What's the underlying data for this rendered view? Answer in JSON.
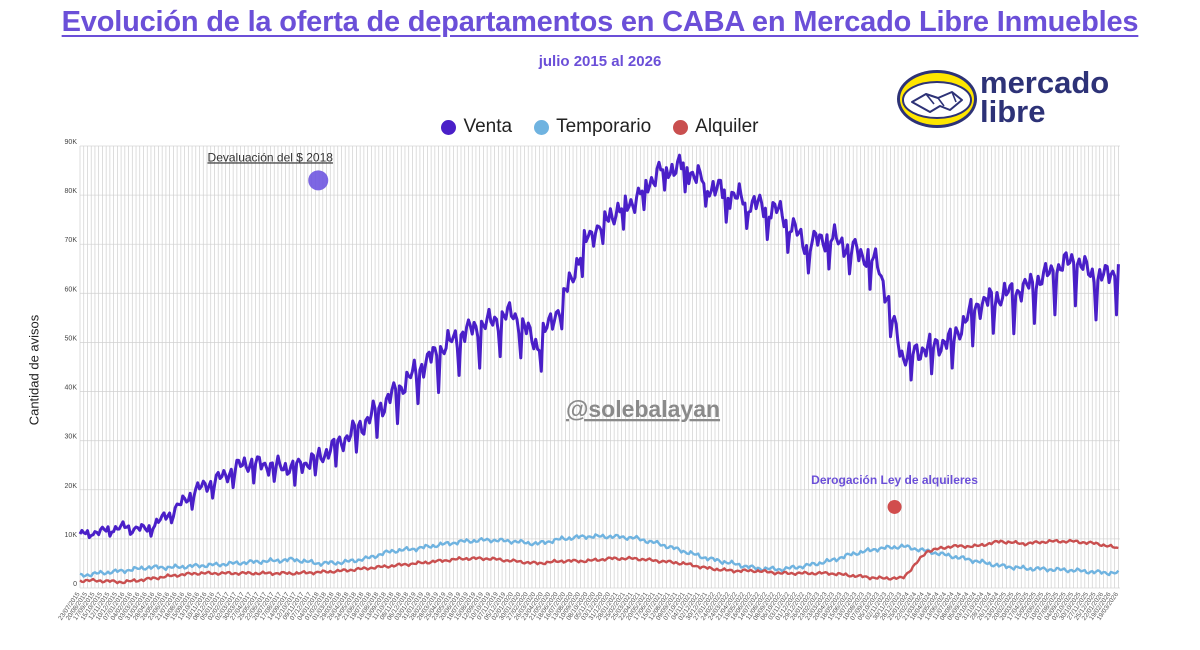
{
  "chart_data": {
    "type": "line",
    "title": "Evolución de la oferta de departamentos en CABA en Mercado Libre Inmuebles",
    "subtitle": "julio 2015 al 2026",
    "ylabel": "Cantidad de avisos",
    "xlabel": "",
    "ylim": [
      0,
      90000
    ],
    "yticks": [
      0,
      10000,
      20000,
      30000,
      40000,
      50000,
      60000,
      70000,
      80000,
      90000
    ],
    "ytick_labels": [
      "0",
      "10K",
      "20K",
      "30K",
      "40K",
      "50K",
      "60K",
      "70K",
      "80K",
      "90K"
    ],
    "grid": true,
    "legend_position": "top-center",
    "x": [
      "2015-07-23",
      "2015-10-01",
      "2016-01-01",
      "2016-04-01",
      "2016-07-01",
      "2016-10-01",
      "2017-01-01",
      "2017-04-01",
      "2017-07-01",
      "2017-10-01",
      "2018-01-01",
      "2018-04-01",
      "2018-07-01",
      "2018-10-01",
      "2019-01-01",
      "2019-04-01",
      "2019-07-01",
      "2019-10-01",
      "2020-01-01",
      "2020-04-01",
      "2020-07-01",
      "2020-10-01",
      "2021-01-01",
      "2021-04-01",
      "2021-07-01",
      "2021-10-01",
      "2022-01-01",
      "2022-04-01",
      "2022-07-01",
      "2022-10-01",
      "2023-01-01",
      "2023-04-01",
      "2023-07-01",
      "2023-10-01",
      "2024-01-01",
      "2024-04-01",
      "2024-07-01",
      "2024-10-01",
      "2025-01-01",
      "2025-04-01",
      "2025-07-01",
      "2025-10-01",
      "2026-01-01",
      "2026-03-25"
    ],
    "series": [
      {
        "name": "Venta",
        "color": "#4a1fc8",
        "values": [
          11000,
          11500,
          12500,
          12000,
          15500,
          20000,
          22500,
          25500,
          25000,
          24500,
          26500,
          30000,
          34000,
          39000,
          44000,
          48500,
          52000,
          54000,
          56000,
          49500,
          58000,
          71000,
          76000,
          79000,
          85000,
          86000,
          82000,
          80000,
          78000,
          76500,
          70000,
          71500,
          69000,
          66000,
          47000,
          49000,
          50500,
          57500,
          59500,
          61000,
          64000,
          67000,
          63000,
          65000
        ]
      },
      {
        "name": "Temporario",
        "color": "#6fb3e0",
        "values": [
          2500,
          3000,
          3500,
          4200,
          4200,
          4500,
          4800,
          5200,
          5500,
          5800,
          5000,
          5200,
          6000,
          7500,
          8000,
          8800,
          9500,
          9800,
          9500,
          9000,
          10000,
          10500,
          10500,
          10200,
          9000,
          7500,
          6000,
          5000,
          4000,
          3800,
          4500,
          5500,
          7000,
          8000,
          8500,
          7500,
          6500,
          5500,
          4500,
          4000,
          3800,
          3600,
          3200,
          3000
        ]
      },
      {
        "name": "Alquiler",
        "color": "#c94f4f",
        "values": [
          1500,
          1500,
          1200,
          1800,
          2500,
          3000,
          3000,
          3000,
          3000,
          3000,
          3200,
          3500,
          4000,
          4500,
          5000,
          5500,
          6000,
          6000,
          5500,
          5000,
          5500,
          5500,
          6000,
          6000,
          5500,
          5000,
          4000,
          3500,
          3500,
          3000,
          3000,
          3000,
          2500,
          2000,
          2000,
          7500,
          8500,
          8500,
          9500,
          9000,
          9500,
          9500,
          9000,
          8000
        ]
      }
    ],
    "annotations": [
      {
        "text": "Devaluación del $ 2018",
        "x": "2018-01-01",
        "y": 83000,
        "color": "#6f56e0"
      },
      {
        "text": "Derogación Ley de alquileres",
        "x": "2023-12-01",
        "y": 16500,
        "color": "#d14d4d"
      }
    ],
    "watermark": "@solebalayan"
  },
  "logo": {
    "line1": "mercado",
    "line2": "libre"
  }
}
